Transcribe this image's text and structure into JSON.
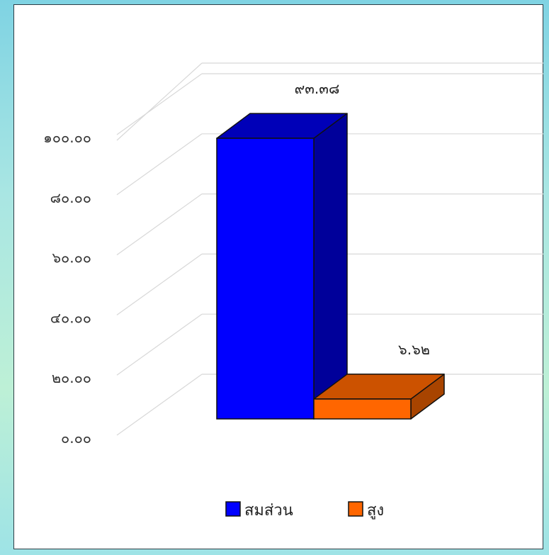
{
  "chart_data": {
    "type": "bar",
    "categories": [
      "สมส่วน",
      "สูง"
    ],
    "values": [
      93.38,
      6.62
    ],
    "value_labels": [
      "๙๓.๓๘",
      "๖.๖๒"
    ],
    "y_tick_labels": [
      "๐.๐๐",
      "๒๐.๐๐",
      "๔๐.๐๐",
      "๖๐.๐๐",
      "๘๐.๐๐",
      "๑๐๐.๐๐"
    ],
    "ylim": [
      0,
      100
    ],
    "grid": true,
    "legend_position": "bottom",
    "colors": {
      "series": [
        "#0000ff",
        "#ff6600"
      ],
      "top": [
        "#0000b8",
        "#cc5200"
      ],
      "side": [
        "#00009a",
        "#a84400"
      ],
      "grid": "#d8d8d8"
    }
  }
}
